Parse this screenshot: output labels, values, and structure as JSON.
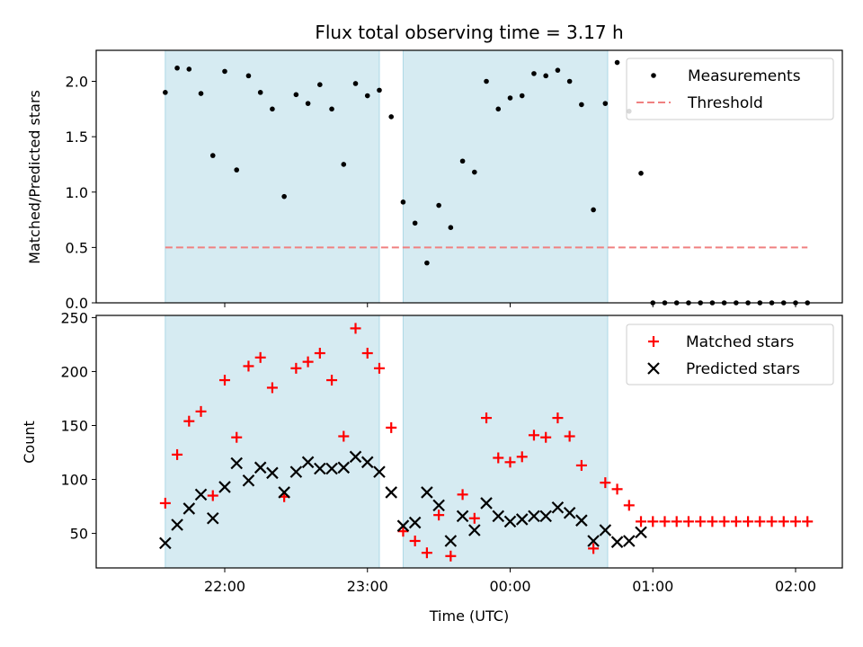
{
  "chart_data": [
    {
      "type": "scatter",
      "title": "Flux total observing time = 3.17 h",
      "xlabel": "",
      "ylabel": "Matched/Predicted stars",
      "ylim": [
        0,
        2.28
      ],
      "yticks": [
        "0.0",
        "0.5",
        "1.0",
        "1.5",
        "2.0"
      ],
      "ytick_values": [
        0,
        0.5,
        1.0,
        1.5,
        2.0
      ],
      "legend_position": "top-right",
      "shaded_intervals": [
        {
          "start": "21:35",
          "end": "23:05"
        },
        {
          "start": "23:15",
          "end": "00:41"
        }
      ],
      "series": [
        {
          "name": "Measurements",
          "type": "scatter",
          "marker": "dot",
          "color": "#000000",
          "x": [
            "21:35",
            "21:40",
            "21:45",
            "21:50",
            "21:55",
            "22:00",
            "22:05",
            "22:10",
            "22:15",
            "22:20",
            "22:25",
            "22:30",
            "22:35",
            "22:40",
            "22:45",
            "22:50",
            "22:55",
            "23:00",
            "23:05",
            "23:10",
            "23:15",
            "23:20",
            "23:25",
            "23:30",
            "23:35",
            "23:40",
            "23:45",
            "23:50",
            "23:55",
            "00:00",
            "00:05",
            "00:10",
            "00:15",
            "00:20",
            "00:25",
            "00:30",
            "00:35",
            "00:40",
            "00:45",
            "00:50",
            "00:55",
            "01:00",
            "01:05",
            "01:10",
            "01:15",
            "01:20",
            "01:25",
            "01:30",
            "01:35",
            "01:40",
            "01:45",
            "01:50",
            "01:55",
            "02:00",
            "02:05"
          ],
          "y": [
            1.9,
            2.12,
            2.11,
            1.89,
            1.33,
            2.09,
            1.2,
            2.05,
            1.9,
            1.75,
            0.96,
            1.88,
            1.8,
            1.97,
            1.75,
            1.25,
            1.98,
            1.87,
            1.92,
            1.68,
            0.91,
            0.72,
            0.36,
            0.88,
            0.68,
            1.28,
            1.18,
            2.0,
            1.75,
            1.85,
            1.87,
            2.07,
            2.05,
            2.1,
            2.0,
            1.79,
            0.84,
            1.8,
            2.17,
            1.73,
            1.17,
            0,
            0,
            0,
            0,
            0,
            0,
            0,
            0,
            0,
            0,
            0,
            0,
            0,
            0
          ]
        },
        {
          "name": "Threshold",
          "type": "line",
          "style": "dashed",
          "color": "#f08080",
          "x": [
            "21:35",
            "02:05"
          ],
          "y": [
            0.5,
            0.5
          ]
        }
      ]
    },
    {
      "type": "scatter",
      "title": "",
      "xlabel": "Time (UTC)",
      "ylabel": "Count",
      "ylim": [
        18,
        252
      ],
      "yticks": [
        "50",
        "100",
        "150",
        "200",
        "250"
      ],
      "ytick_values": [
        50,
        100,
        150,
        200,
        250
      ],
      "xticks": [
        "22:00",
        "23:00",
        "00:00",
        "01:00",
        "02:00"
      ],
      "legend_position": "top-right",
      "shaded_intervals": [
        {
          "start": "21:35",
          "end": "23:05"
        },
        {
          "start": "23:15",
          "end": "00:41"
        }
      ],
      "series": [
        {
          "name": "Matched stars",
          "type": "scatter",
          "marker": "plus",
          "color": "#ff0000",
          "x": [
            "21:35",
            "21:40",
            "21:45",
            "21:50",
            "21:55",
            "22:00",
            "22:05",
            "22:10",
            "22:15",
            "22:20",
            "22:25",
            "22:30",
            "22:35",
            "22:40",
            "22:45",
            "22:50",
            "22:55",
            "23:00",
            "23:05",
            "23:10",
            "23:15",
            "23:20",
            "23:25",
            "23:30",
            "23:35",
            "23:40",
            "23:45",
            "23:50",
            "23:55",
            "00:00",
            "00:05",
            "00:10",
            "00:15",
            "00:20",
            "00:25",
            "00:30",
            "00:35",
            "00:40",
            "00:45",
            "00:50",
            "00:55",
            "01:00",
            "01:05",
            "01:10",
            "01:15",
            "01:20",
            "01:25",
            "01:30",
            "01:35",
            "01:40",
            "01:45",
            "01:50",
            "01:55",
            "02:00",
            "02:05"
          ],
          "y": [
            78,
            123,
            154,
            163,
            85,
            192,
            139,
            205,
            213,
            185,
            84,
            203,
            209,
            217,
            192,
            140,
            240,
            217,
            203,
            148,
            52,
            43,
            32,
            67,
            29,
            86,
            64,
            157,
            120,
            116,
            121,
            141,
            139,
            157,
            140,
            113,
            36,
            97,
            91,
            76,
            61,
            61,
            61,
            61,
            61,
            61,
            61,
            61,
            61,
            61,
            61,
            61,
            61,
            61,
            61
          ]
        },
        {
          "name": "Predicted stars",
          "type": "scatter",
          "marker": "x",
          "color": "#000000",
          "x": [
            "21:35",
            "21:40",
            "21:45",
            "21:50",
            "21:55",
            "22:00",
            "22:05",
            "22:10",
            "22:15",
            "22:20",
            "22:25",
            "22:30",
            "22:35",
            "22:40",
            "22:45",
            "22:50",
            "22:55",
            "23:00",
            "23:05",
            "23:10",
            "23:15",
            "23:20",
            "23:25",
            "23:30",
            "23:35",
            "23:40",
            "23:45",
            "23:50",
            "23:55",
            "00:00",
            "00:05",
            "00:10",
            "00:15",
            "00:20",
            "00:25",
            "00:30",
            "00:35",
            "00:40",
            "00:45",
            "00:50",
            "00:55"
          ],
          "y": [
            41,
            58,
            73,
            86,
            64,
            93,
            115,
            99,
            111,
            106,
            88,
            107,
            116,
            110,
            110,
            111,
            121,
            116,
            107,
            88,
            57,
            60,
            88,
            76,
            43,
            66,
            53,
            78,
            66,
            61,
            63,
            66,
            66,
            74,
            69,
            62,
            43,
            53,
            42,
            43,
            51
          ]
        }
      ]
    }
  ]
}
